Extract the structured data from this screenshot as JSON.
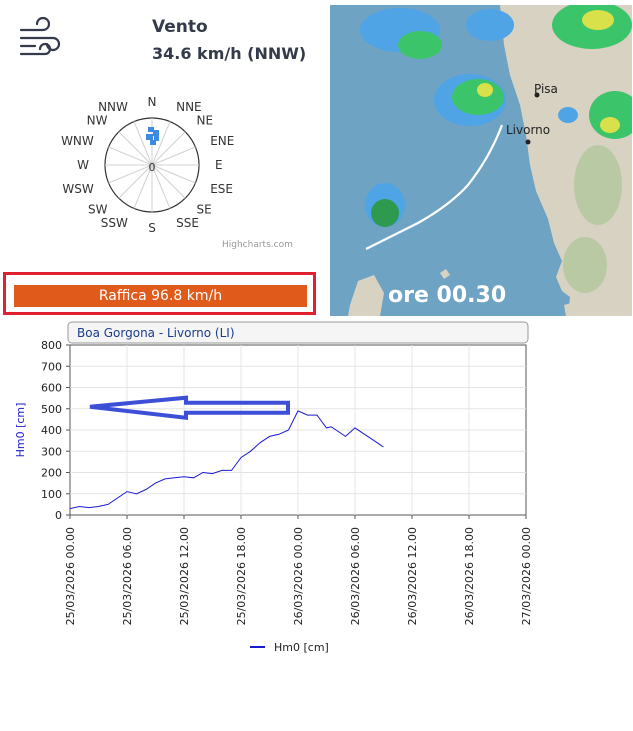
{
  "wind": {
    "title": "Vento",
    "speed_text": "34.6 km/h (NNW)",
    "center_label": "0",
    "credits": "Highcharts.com",
    "directions": [
      "N",
      "NNE",
      "NE",
      "ENE",
      "E",
      "ESE",
      "SE",
      "SSE",
      "S",
      "SSW",
      "SW",
      "WSW",
      "W",
      "WNW",
      "NW",
      "NNW"
    ],
    "rose_color": "#3d8be0"
  },
  "gust": {
    "text": "Raffica 96.8 km/h",
    "color": "#e05a1b",
    "border_color": "#e0202e"
  },
  "map": {
    "time_label": "ore 00.30",
    "cities": [
      {
        "name": "Pisa"
      },
      {
        "name": "Livorno"
      }
    ]
  },
  "chart_data": {
    "type": "line",
    "title": "Boa Gorgona - Livorno (LI)",
    "ylabel": "Hm0 [cm]",
    "xlabel": "",
    "ylim": [
      0,
      800
    ],
    "yticks": [
      0,
      100,
      200,
      300,
      400,
      500,
      600,
      700,
      800
    ],
    "xlim": [
      "25/03/2026 00.00",
      "27/03/2026 00.00"
    ],
    "x_tick_labels": [
      "25/03/2026 00.00",
      "25/03/2026 06.00",
      "25/03/2026 12.00",
      "25/03/2026 18.00",
      "26/03/2026 00.00",
      "26/03/2026 06.00",
      "26/03/2026 12.00",
      "26/03/2026 18.00",
      "27/03/2026 00.00"
    ],
    "grid": true,
    "legend_position": "bottom-center",
    "series": [
      {
        "name": "Hm0 [cm]",
        "color": "#1a1ad0",
        "x": [
          "25/03/2026 00.00",
          "25/03/2026 01.00",
          "25/03/2026 02.00",
          "25/03/2026 03.00",
          "25/03/2026 04.00",
          "25/03/2026 05.00",
          "25/03/2026 06.00",
          "25/03/2026 06.30",
          "25/03/2026 07.00",
          "25/03/2026 08.00",
          "25/03/2026 09.00",
          "25/03/2026 10.00",
          "25/03/2026 11.00",
          "25/03/2026 12.00",
          "25/03/2026 13.00",
          "25/03/2026 14.00",
          "25/03/2026 15.00",
          "25/03/2026 16.00",
          "25/03/2026 17.00",
          "25/03/2026 18.00",
          "25/03/2026 19.00",
          "25/03/2026 20.00",
          "25/03/2026 21.00",
          "25/03/2026 22.00",
          "25/03/2026 23.00",
          "26/03/2026 00.00",
          "26/03/2026 00.30",
          "26/03/2026 01.00",
          "26/03/2026 02.00",
          "26/03/2026 03.00",
          "26/03/2026 03.30",
          "26/03/2026 04.00",
          "26/03/2026 05.00",
          "26/03/2026 06.00",
          "26/03/2026 07.00",
          "26/03/2026 08.00",
          "26/03/2026 09.00"
        ],
        "values": [
          30,
          40,
          35,
          40,
          50,
          80,
          110,
          105,
          100,
          120,
          150,
          170,
          175,
          180,
          175,
          200,
          195,
          210,
          210,
          270,
          300,
          340,
          370,
          380,
          400,
          490,
          480,
          470,
          470,
          410,
          415,
          400,
          370,
          410,
          380,
          350,
          320
        ]
      }
    ],
    "annotations": [
      {
        "type": "arrow",
        "direction": "left",
        "color": "#3d4fd6",
        "at_y": 500
      }
    ]
  }
}
